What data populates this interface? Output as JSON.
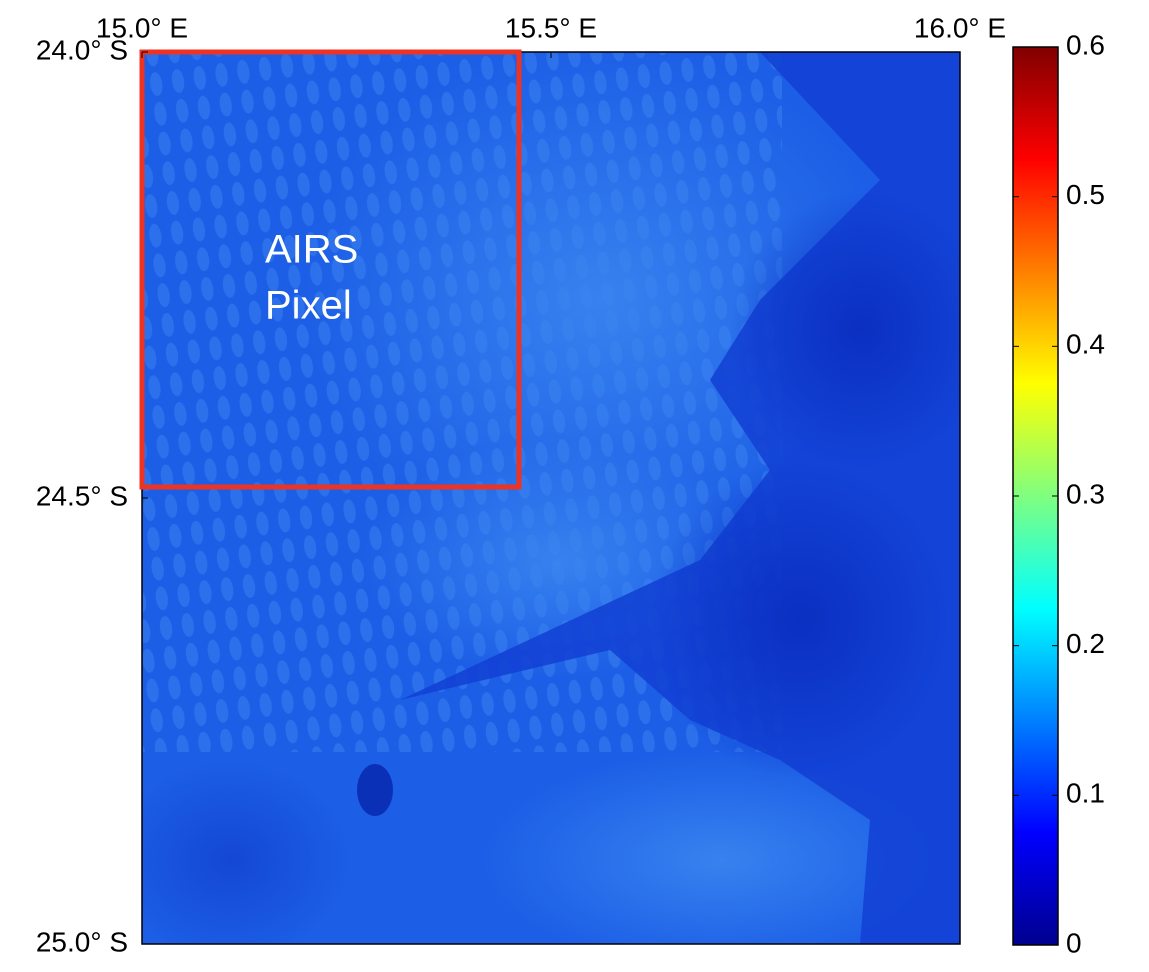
{
  "map": {
    "xlim": [
      15.0,
      16.0
    ],
    "xticks": [
      {
        "value": 15.0,
        "label": "15.0° E"
      },
      {
        "value": 15.5,
        "label": "15.5° E"
      },
      {
        "value": 16.0,
        "label": "16.0° E"
      }
    ],
    "ylim": [
      24.0,
      25.0
    ],
    "yticks": [
      {
        "value": 24.0,
        "label": "24.0° S"
      },
      {
        "value": 24.5,
        "label": "24.5° S"
      },
      {
        "value": 25.0,
        "label": "25.0° S"
      }
    ],
    "annotation": [
      "AIRS",
      "Pixel"
    ]
  },
  "colorbar": {
    "colormap": "jet",
    "lim": [
      0,
      0.6
    ],
    "ticks": [
      0,
      0.1,
      0.2,
      0.3,
      0.4,
      0.5,
      0.6
    ]
  }
}
